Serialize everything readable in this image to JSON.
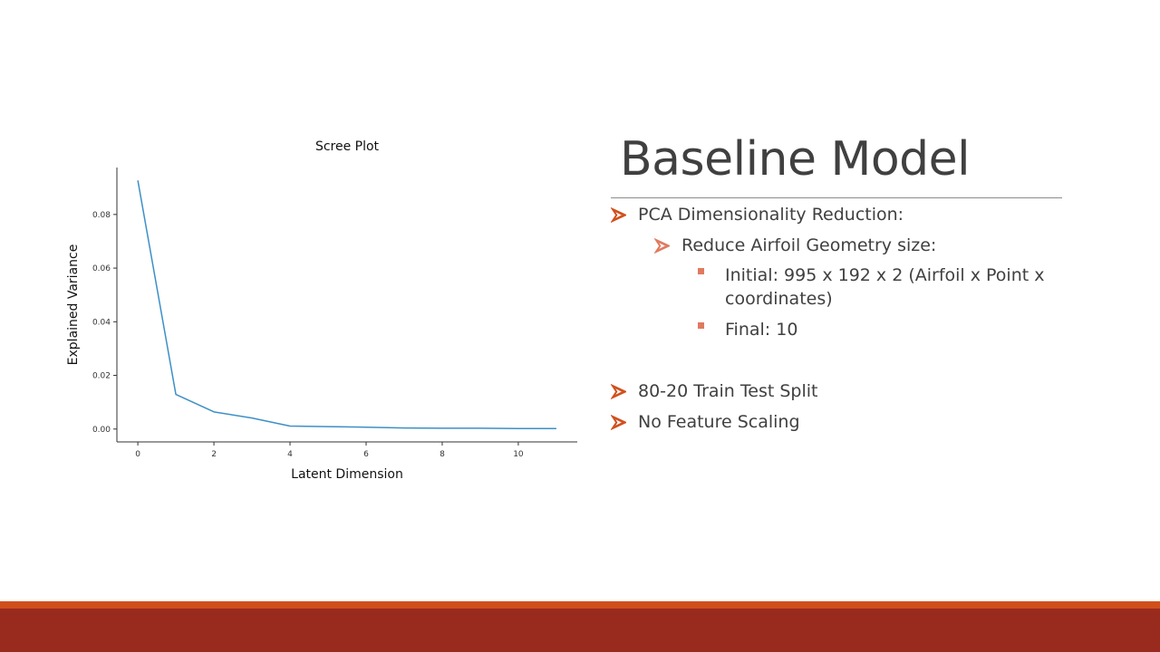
{
  "slide": {
    "title": "Baseline Model",
    "bullets": [
      {
        "text": "PCA Dimensionality Reduction:",
        "level": 1,
        "marker": "arrow-icon"
      },
      {
        "text": "Reduce Airfoil Geometry size:",
        "level": 2,
        "marker": "arrow-icon"
      },
      {
        "text": "Initial: 995 x 192 x 2 (Airfoil x Point x coordinates)",
        "level": 3,
        "marker": "square-icon"
      },
      {
        "text": "Final: 10",
        "level": 3,
        "marker": "square-icon"
      },
      {
        "text": "80-20 Train Test Split",
        "level": 1,
        "marker": "arrow-icon"
      },
      {
        "text": "No Feature Scaling",
        "level": 1,
        "marker": "arrow-icon"
      }
    ]
  },
  "colors": {
    "accent_orange": "#d0501c",
    "accent_dark_red": "#992b1e",
    "bullet_square": "#e07a5f",
    "text": "#404040",
    "series_line": "#3d8fc6"
  },
  "chart_data": {
    "type": "line",
    "title": "Scree Plot",
    "xlabel": "Latent Dimension",
    "ylabel": "Explained Variance",
    "x": [
      0,
      1,
      2,
      3,
      4,
      5,
      6,
      7,
      8,
      9,
      10,
      11
    ],
    "series": [
      {
        "values": [
          0.0927,
          0.0129,
          0.0064,
          0.0041,
          0.0011,
          0.0009,
          0.0007,
          0.0004,
          0.0003,
          0.0003,
          0.0002,
          0.0002
        ]
      }
    ],
    "xlim": [
      -0.55,
      11.55
    ],
    "ylim": [
      -0.0048,
      0.0975
    ],
    "xticks": [
      0,
      2,
      4,
      6,
      8,
      10
    ],
    "yticks": [
      0.0,
      0.02,
      0.04,
      0.06,
      0.08
    ],
    "ytick_labels": [
      "0.00",
      "0.02",
      "0.04",
      "0.06",
      "0.08"
    ],
    "grid": false,
    "spines": [
      "left",
      "bottom"
    ]
  }
}
